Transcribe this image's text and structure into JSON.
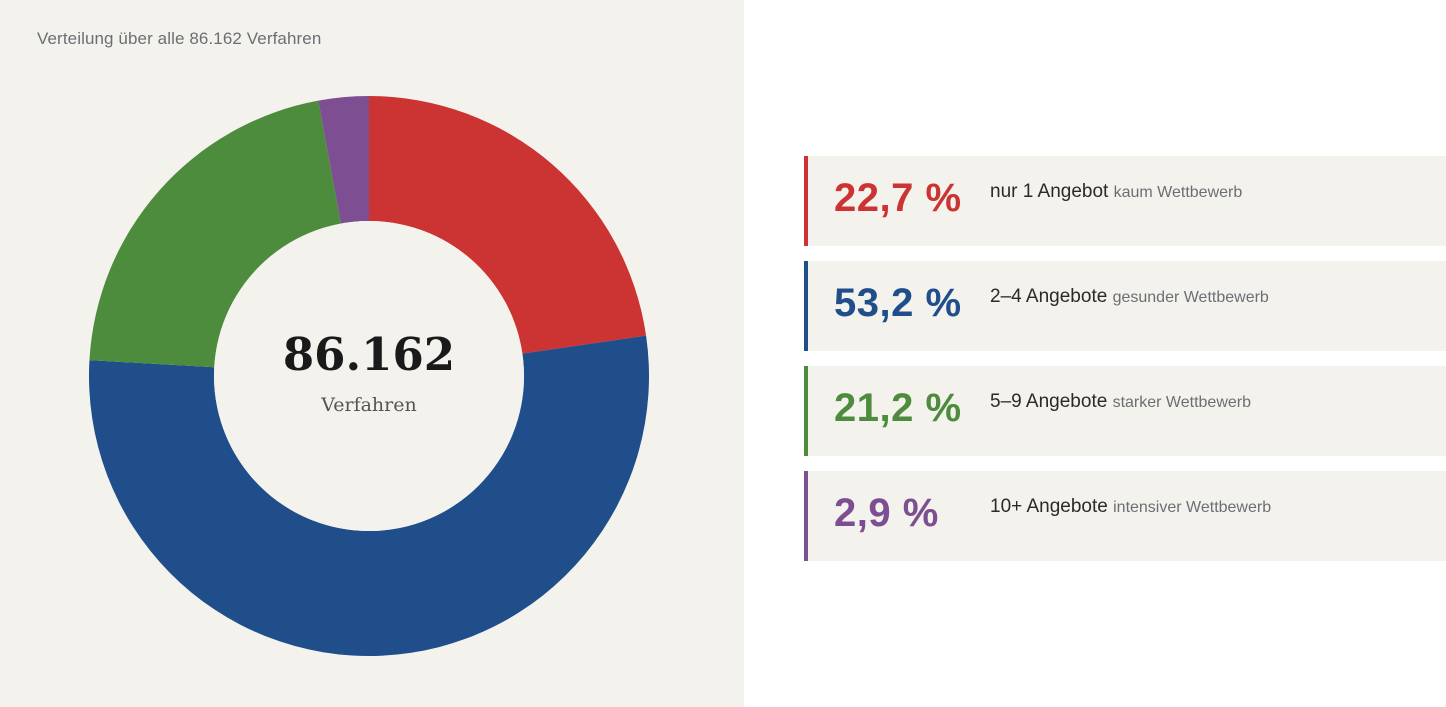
{
  "chart": {
    "caption": "Verteilung über alle 86.162 Verfahren",
    "center_value": "86.162",
    "center_label": "Verfahren"
  },
  "chart_data": {
    "type": "pie",
    "donut": true,
    "total": 86162,
    "unit": "%",
    "slices": [
      {
        "label": "nur 1 Angebot",
        "value": 22.7,
        "color": "#cc3333"
      },
      {
        "label": "2–4 Angebote",
        "value": 53.2,
        "color": "#1f4e8b"
      },
      {
        "label": "5–9 Angebote",
        "value": 21.2,
        "color": "#4c8c3c"
      },
      {
        "label": "10+ Angebote",
        "value": 2.9,
        "color": "#7d4e91"
      }
    ]
  },
  "legend": [
    {
      "pct": "22,7 %",
      "label": "nur 1 Angebot",
      "sub": "kaum Wettbewerb",
      "color": "#cc3333"
    },
    {
      "pct": "53,2 %",
      "label": "2–4 Angebote",
      "sub": "gesunder Wettbewerb",
      "color": "#1f4e8b"
    },
    {
      "pct": "21,2 %",
      "label": "5–9 Angebote",
      "sub": "starker Wettbewerb",
      "color": "#4c8c3c"
    },
    {
      "pct": "2,9 %",
      "label": "10+ Angebote",
      "sub": "intensiver Wettbewerb",
      "color": "#7d4e91"
    }
  ]
}
